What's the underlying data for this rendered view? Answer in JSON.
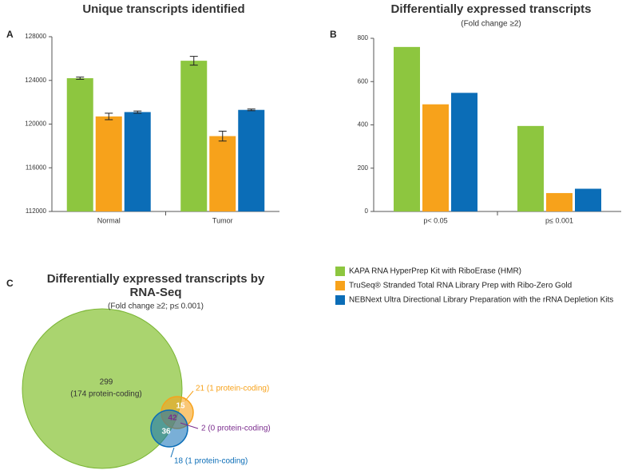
{
  "chart_data": [
    {
      "type": "bar",
      "label": "A",
      "title": "Unique transcripts identified",
      "categories": [
        "Normal",
        "Tumor"
      ],
      "series": [
        {
          "name": "KAPA RNA HyperPrep Kit with RiboErase (HMR)",
          "color": "#8dc63f",
          "values": [
            124200,
            125800
          ],
          "errors": [
            100,
            400
          ]
        },
        {
          "name": "TruSeq® Stranded Total RNA Library Prep with Ribo-Zero Gold",
          "color": "#f7a21b",
          "values": [
            120700,
            118900
          ],
          "errors": [
            300,
            450
          ]
        },
        {
          "name": "NEBNext Ultra Directional Library Preparation with the rRNA Depletion Kits",
          "color": "#0b6db7",
          "values": [
            121100,
            121300
          ],
          "errors": [
            100,
            80
          ]
        }
      ],
      "ylim": [
        112000,
        128000
      ],
      "yticks": [
        112000,
        116000,
        120000,
        124000,
        128000
      ]
    },
    {
      "type": "bar",
      "label": "B",
      "title": "Differentially expressed transcripts",
      "subtitle": "(Fold change ≥2)",
      "categories": [
        "p< 0.05",
        "p≤ 0.001"
      ],
      "series": [
        {
          "color": "#8dc63f",
          "values": [
            760,
            395
          ]
        },
        {
          "color": "#f7a21b",
          "values": [
            495,
            85
          ]
        },
        {
          "color": "#0b6db7",
          "values": [
            548,
            105
          ]
        }
      ],
      "ylim": [
        0,
        800
      ],
      "yticks": [
        0,
        200,
        400,
        600,
        800
      ]
    },
    {
      "type": "venn",
      "label": "C",
      "title": "Differentially expressed transcripts by RNA-Seq",
      "subtitle": "(Fold change ≥2; p≤ 0.001)",
      "regions": [
        {
          "value": 299,
          "note": "(174 protein-coding)"
        },
        {
          "value": 15
        },
        {
          "value": 42
        },
        {
          "value": 36
        }
      ],
      "annotations": [
        "21 (1 protein-coding)",
        "2 (0 protein-coding)",
        "18 (1 protein-coding)"
      ]
    }
  ]
}
